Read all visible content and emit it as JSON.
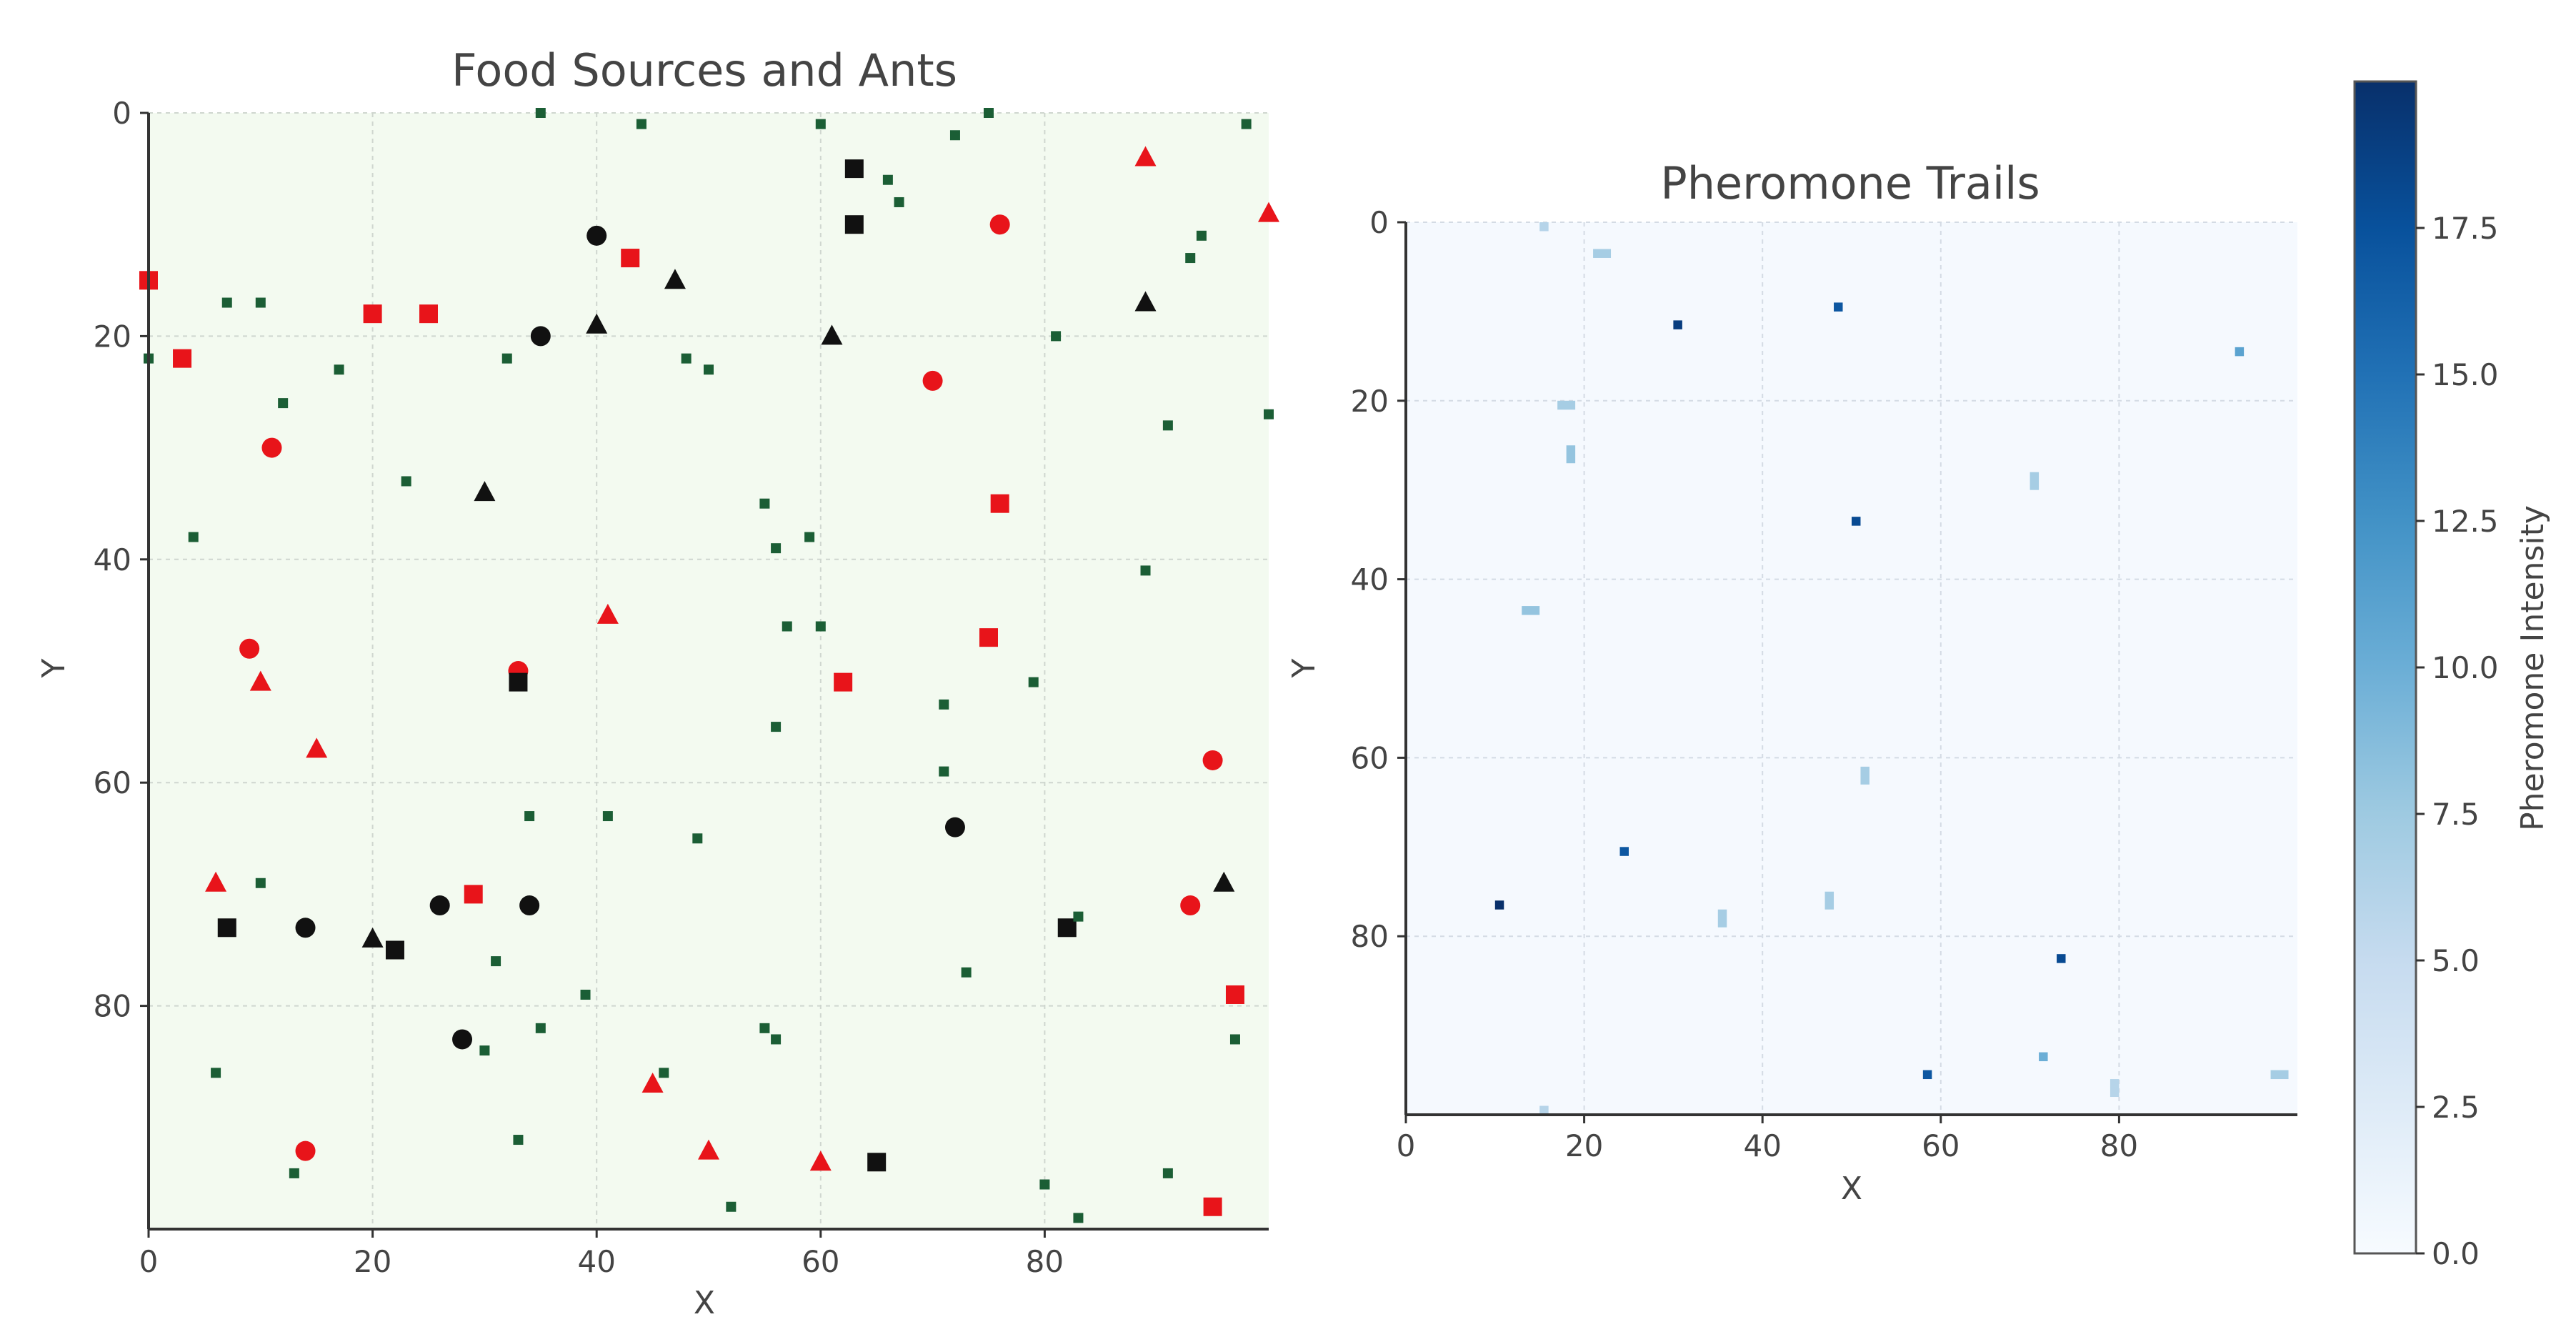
{
  "colors": {
    "left_background": "#f3faf0",
    "right_background": "#f5f9fe",
    "grid": "#cfd6cf",
    "red": "#e8141a",
    "black": "#111111",
    "green": "#1b5e35",
    "axis": "#333333",
    "text": "#444444",
    "colormap": [
      "#f7fbff",
      "#deebf7",
      "#c6dbef",
      "#9ecae1",
      "#6baed6",
      "#4292c6",
      "#2171b5",
      "#08519c",
      "#08306b"
    ]
  },
  "chart_data": [
    {
      "type": "scatter",
      "title": "Food Sources and Ants",
      "xlabel": "X",
      "ylabel": "Y",
      "xlim": [
        0,
        100
      ],
      "ylim": [
        100,
        0
      ],
      "y_inverted": true,
      "grid": true,
      "xticks": [
        "0",
        "20",
        "40",
        "60",
        "80"
      ],
      "yticks": [
        "0",
        "20",
        "40",
        "60",
        "80"
      ],
      "series": [
        {
          "marker": "square",
          "color": "red",
          "points": [
            [
              0,
              15
            ],
            [
              3,
              22
            ],
            [
              20,
              18
            ],
            [
              25,
              18
            ],
            [
              43,
              13
            ],
            [
              76,
              35
            ],
            [
              62,
              51
            ],
            [
              75,
              47
            ],
            [
              29,
              70
            ],
            [
              97,
              79
            ],
            [
              95,
              98
            ]
          ]
        },
        {
          "marker": "circle",
          "color": "red",
          "points": [
            [
              76,
              10
            ],
            [
              70,
              24
            ],
            [
              11,
              30
            ],
            [
              9,
              48
            ],
            [
              33,
              50
            ],
            [
              95,
              58
            ],
            [
              93,
              71
            ],
            [
              14,
              93
            ]
          ]
        },
        {
          "marker": "triangle",
          "color": "red",
          "points": [
            [
              89,
              4
            ],
            [
              100,
              9
            ],
            [
              41,
              45
            ],
            [
              10,
              51
            ],
            [
              15,
              57
            ],
            [
              6,
              69
            ],
            [
              45,
              87
            ],
            [
              50,
              93
            ],
            [
              60,
              94
            ]
          ]
        },
        {
          "marker": "square",
          "color": "black",
          "points": [
            [
              63,
              5
            ],
            [
              63,
              10
            ],
            [
              33,
              51
            ],
            [
              7,
              73
            ],
            [
              22,
              75
            ],
            [
              82,
              73
            ],
            [
              65,
              94
            ]
          ]
        },
        {
          "marker": "circle",
          "color": "black",
          "points": [
            [
              40,
              11
            ],
            [
              35,
              20
            ],
            [
              72,
              64
            ],
            [
              14,
              73
            ],
            [
              26,
              71
            ],
            [
              34,
              71
            ],
            [
              28,
              83
            ]
          ]
        },
        {
          "marker": "triangle",
          "color": "black",
          "points": [
            [
              47,
              15
            ],
            [
              40,
              19
            ],
            [
              61,
              20
            ],
            [
              89,
              17
            ],
            [
              30,
              34
            ],
            [
              20,
              74
            ],
            [
              96,
              69
            ]
          ]
        },
        {
          "marker": "small-square",
          "color": "green",
          "points": [
            [
              35,
              0
            ],
            [
              44,
              1
            ],
            [
              60,
              1
            ],
            [
              72,
              2
            ],
            [
              75,
              0
            ],
            [
              98,
              1
            ],
            [
              66,
              6
            ],
            [
              67,
              8
            ],
            [
              94,
              11
            ],
            [
              93,
              13
            ],
            [
              7,
              17
            ],
            [
              10,
              17
            ],
            [
              0,
              22
            ],
            [
              32,
              22
            ],
            [
              48,
              22
            ],
            [
              50,
              23
            ],
            [
              17,
              23
            ],
            [
              12,
              26
            ],
            [
              81,
              20
            ],
            [
              91,
              28
            ],
            [
              100,
              27
            ],
            [
              23,
              33
            ],
            [
              55,
              35
            ],
            [
              56,
              39
            ],
            [
              59,
              38
            ],
            [
              4,
              38
            ],
            [
              89,
              41
            ],
            [
              57,
              46
            ],
            [
              60,
              46
            ],
            [
              79,
              51
            ],
            [
              71,
              53
            ],
            [
              56,
              55
            ],
            [
              71,
              59
            ],
            [
              34,
              63
            ],
            [
              41,
              63
            ],
            [
              49,
              65
            ],
            [
              10,
              69
            ],
            [
              83,
              72
            ],
            [
              31,
              76
            ],
            [
              73,
              77
            ],
            [
              39,
              79
            ],
            [
              35,
              82
            ],
            [
              55,
              82
            ],
            [
              56,
              83
            ],
            [
              97,
              83
            ],
            [
              6,
              86
            ],
            [
              46,
              86
            ],
            [
              30,
              84
            ],
            [
              33,
              92
            ],
            [
              13,
              95
            ],
            [
              91,
              95
            ],
            [
              80,
              96
            ],
            [
              52,
              98
            ],
            [
              83,
              99
            ]
          ]
        }
      ]
    },
    {
      "type": "heatmap",
      "title": "Pheromone Trails",
      "xlabel": "X",
      "ylabel": "Y",
      "xlim": [
        0,
        100
      ],
      "ylim": [
        100,
        0
      ],
      "y_inverted": true,
      "grid": true,
      "xticks": [
        "0",
        "20",
        "40",
        "60",
        "80"
      ],
      "yticks": [
        "0",
        "20",
        "40",
        "60",
        "80"
      ],
      "colorbar": {
        "label": "Pheromone Intensity",
        "range": [
          0,
          20
        ],
        "ticks": [
          "0.0",
          "2.5",
          "5.0",
          "7.5",
          "10.0",
          "12.5",
          "15.0",
          "17.5"
        ],
        "tick_values": [
          0,
          2.5,
          5,
          7.5,
          10,
          12.5,
          15,
          17.5
        ]
      },
      "cells": [
        {
          "x": 15,
          "y": 0,
          "w": 1,
          "h": 1,
          "v": 6
        },
        {
          "x": 21,
          "y": 3,
          "w": 2,
          "h": 1,
          "v": 7
        },
        {
          "x": 30,
          "y": 11,
          "w": 1,
          "h": 1,
          "v": 19
        },
        {
          "x": 48,
          "y": 9,
          "w": 1,
          "h": 1,
          "v": 17
        },
        {
          "x": 93,
          "y": 14,
          "w": 1,
          "h": 1,
          "v": 11
        },
        {
          "x": 17,
          "y": 20,
          "w": 2,
          "h": 1,
          "v": 7
        },
        {
          "x": 18,
          "y": 25,
          "w": 1,
          "h": 2,
          "v": 8
        },
        {
          "x": 70,
          "y": 28,
          "w": 1,
          "h": 2,
          "v": 7
        },
        {
          "x": 50,
          "y": 33,
          "w": 1,
          "h": 1,
          "v": 18
        },
        {
          "x": 13,
          "y": 43,
          "w": 2,
          "h": 1,
          "v": 8
        },
        {
          "x": 51,
          "y": 61,
          "w": 1,
          "h": 2,
          "v": 7
        },
        {
          "x": 24,
          "y": 70,
          "w": 1,
          "h": 1,
          "v": 17
        },
        {
          "x": 10,
          "y": 76,
          "w": 1,
          "h": 1,
          "v": 20
        },
        {
          "x": 35,
          "y": 77,
          "w": 1,
          "h": 2,
          "v": 7
        },
        {
          "x": 47,
          "y": 75,
          "w": 1,
          "h": 2,
          "v": 7
        },
        {
          "x": 73,
          "y": 82,
          "w": 1,
          "h": 1,
          "v": 18
        },
        {
          "x": 58,
          "y": 95,
          "w": 1,
          "h": 1,
          "v": 17
        },
        {
          "x": 71,
          "y": 93,
          "w": 1,
          "h": 1,
          "v": 10
        },
        {
          "x": 79,
          "y": 96,
          "w": 1,
          "h": 2,
          "v": 6
        },
        {
          "x": 97,
          "y": 95,
          "w": 2,
          "h": 1,
          "v": 7
        },
        {
          "x": 15,
          "y": 99,
          "w": 1,
          "h": 1,
          "v": 6
        }
      ]
    }
  ]
}
